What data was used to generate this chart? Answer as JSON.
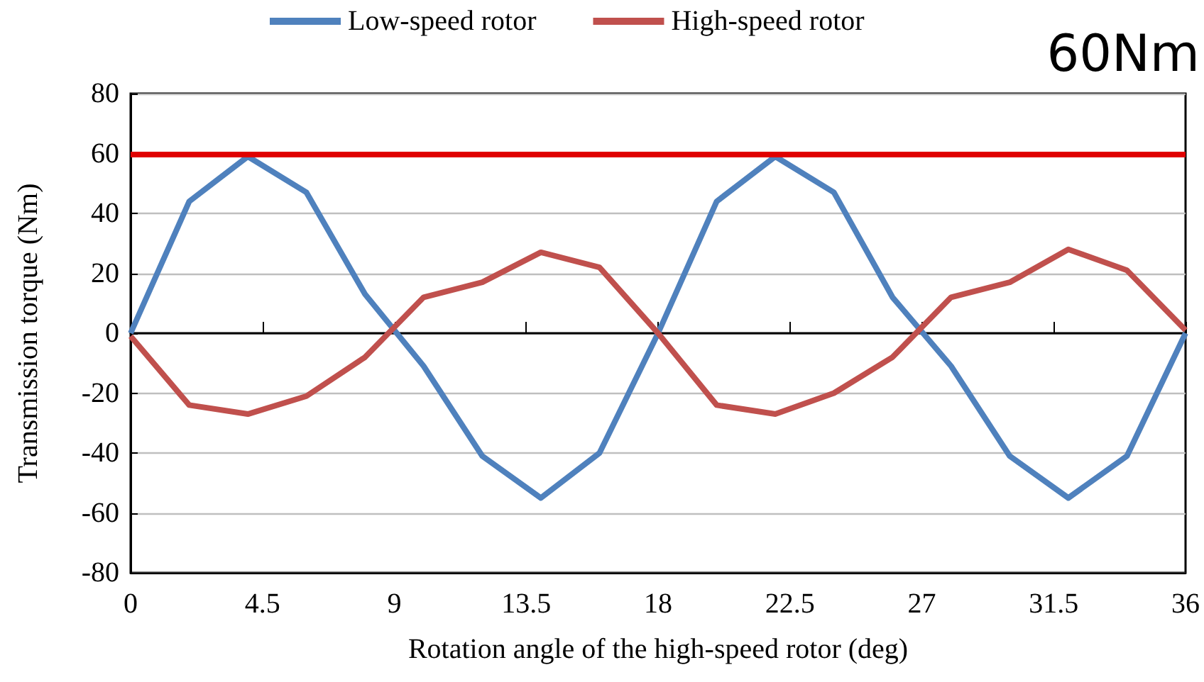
{
  "chart_data": {
    "type": "line",
    "xlabel": "Rotation angle of the high-speed rotor (deg)",
    "ylabel": "Transmission torque (Nm)",
    "x": [
      0,
      2,
      4,
      6,
      8,
      10,
      12,
      14,
      16,
      18,
      20,
      22,
      24,
      26,
      28,
      30,
      32,
      34,
      36
    ],
    "series": [
      {
        "name": "Low-speed rotor",
        "color": "#4f81bd",
        "values": [
          0,
          44,
          59,
          47,
          13,
          -11,
          -41,
          -55,
          -40,
          0,
          44,
          59,
          47,
          12,
          -11,
          -41,
          -55,
          -41,
          0
        ]
      },
      {
        "name": "High-speed rotor",
        "color": "#c0504d",
        "values": [
          -1,
          -24,
          -27,
          -21,
          -8,
          12,
          17,
          27,
          22,
          0,
          -24,
          -27,
          -20,
          -8,
          12,
          17,
          28,
          21,
          1
        ]
      }
    ],
    "xlim": [
      0,
      36
    ],
    "xticks": [
      0,
      4.5,
      9,
      13.5,
      18,
      22.5,
      27,
      31.5,
      36
    ],
    "ylim": [
      -80,
      80
    ],
    "yticks": [
      -80,
      -60,
      -40,
      -20,
      0,
      20,
      40,
      60,
      80
    ],
    "ref_lines": [
      {
        "axis": "y",
        "value": 60,
        "label": "60Nm",
        "color": "#e00000"
      }
    ],
    "grid": "y",
    "legend": "top",
    "marker": "none",
    "line_style": "solid"
  }
}
